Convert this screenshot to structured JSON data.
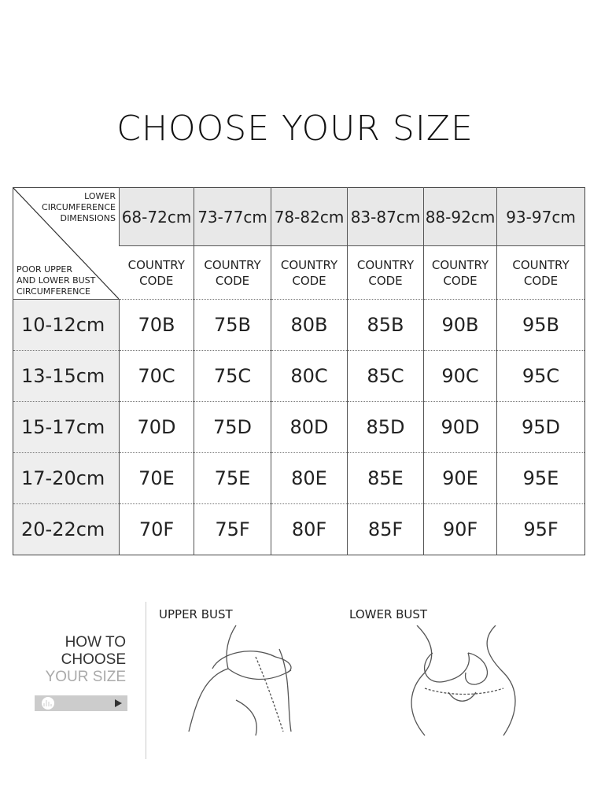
{
  "title": "CHOOSE YOUR SIZE",
  "table": {
    "corner_top": [
      "LOWER",
      "CIRCUMFERENCE",
      "DIMENSIONS"
    ],
    "corner_bottom": [
      "POOR UPPER",
      "AND LOWER BUST",
      "CIRCUMFERENCE"
    ],
    "columns": [
      "68-72cm",
      "73-77cm",
      "78-82cm",
      "83-87cm",
      "88-92cm",
      "93-97cm"
    ],
    "subheader": [
      "COUNTRY",
      "CODE"
    ],
    "rows": [
      {
        "label": "10-12cm",
        "sizes": [
          "70B",
          "75B",
          "80B",
          "85B",
          "90B",
          "95B"
        ]
      },
      {
        "label": "13-15cm",
        "sizes": [
          "70C",
          "75C",
          "80C",
          "85C",
          "90C",
          "95C"
        ]
      },
      {
        "label": "15-17cm",
        "sizes": [
          "70D",
          "75D",
          "80D",
          "85D",
          "90D",
          "95D"
        ]
      },
      {
        "label": "17-20cm",
        "sizes": [
          "70E",
          "75E",
          "80E",
          "85E",
          "90E",
          "95E"
        ]
      },
      {
        "label": "20-22cm",
        "sizes": [
          "70F",
          "75F",
          "80F",
          "85F",
          "90F",
          "95F"
        ]
      }
    ]
  },
  "guide": {
    "line1": "HOW  TO",
    "line2": "CHOOSE",
    "line3": "YOUR SIZE",
    "play_icon": "play-icon",
    "upper_label": "UPPER BUST",
    "lower_label": "LOWER BUST"
  }
}
